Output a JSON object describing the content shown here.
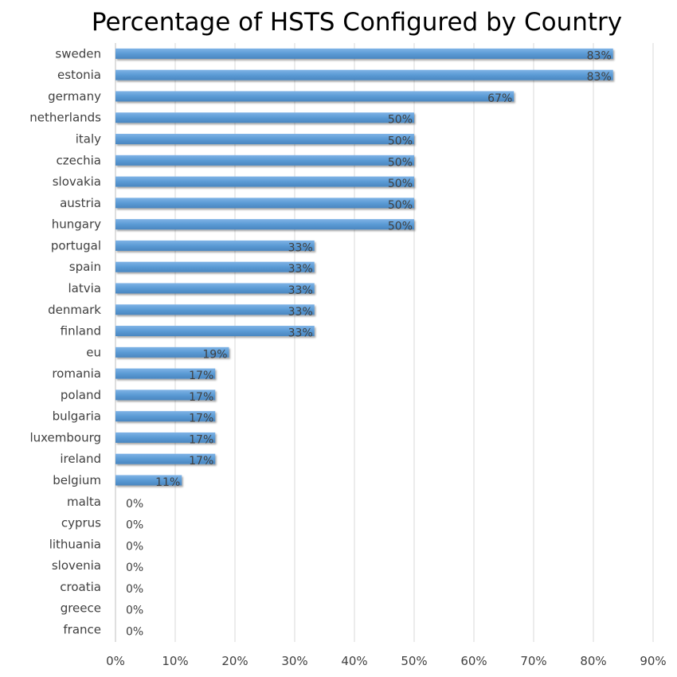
{
  "chart_data": {
    "type": "bar",
    "orientation": "horizontal",
    "title": "Percentage of HSTS Configured by Country",
    "xlabel": "",
    "ylabel": "",
    "xlim": [
      0,
      90
    ],
    "x_ticks": [
      "0%",
      "10%",
      "20%",
      "30%",
      "40%",
      "50%",
      "60%",
      "70%",
      "80%",
      "90%"
    ],
    "grid": true,
    "legend": "none",
    "bar_color": "#5b9bd5",
    "categories": [
      "sweden",
      "estonia",
      "germany",
      "netherlands",
      "italy",
      "czechia",
      "slovakia",
      "austria",
      "hungary",
      "portugal",
      "spain",
      "latvia",
      "denmark",
      "finland",
      "eu",
      "romania",
      "poland",
      "bulgaria",
      "luxembourg",
      "ireland",
      "belgium",
      "malta",
      "cyprus",
      "lithuania",
      "slovenia",
      "croatia",
      "greece",
      "france"
    ],
    "values": [
      83.3,
      83.3,
      66.7,
      50,
      50,
      50,
      50,
      50,
      50,
      33.3,
      33.3,
      33.3,
      33.3,
      33.3,
      19,
      16.7,
      16.7,
      16.7,
      16.7,
      16.7,
      11.1,
      0,
      0,
      0,
      0,
      0,
      0,
      0
    ],
    "data_labels": [
      "83%",
      "83%",
      "67%",
      "50%",
      "50%",
      "50%",
      "50%",
      "50%",
      "50%",
      "33%",
      "33%",
      "33%",
      "33%",
      "33%",
      "19%",
      "17%",
      "17%",
      "17%",
      "17%",
      "17%",
      "11%",
      "0%",
      "0%",
      "0%",
      "0%",
      "0%",
      "0%",
      "0%"
    ]
  }
}
